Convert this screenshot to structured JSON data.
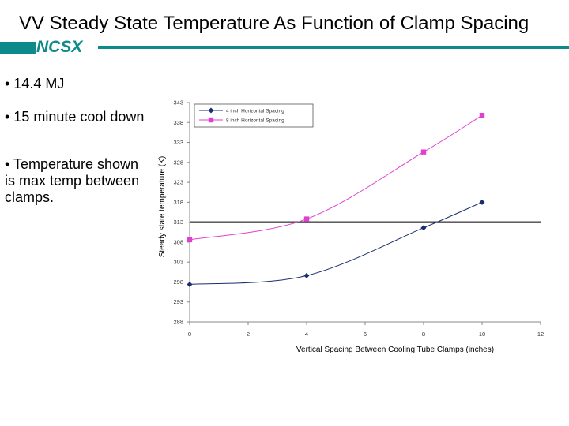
{
  "slide": {
    "title": "VV Steady State Temperature As Function of Clamp Spacing",
    "logo": "NCSX",
    "brand_color": "#0e8a8a",
    "bullets": [
      "• 14.4 MJ",
      "• 15 minute cool down",
      "• Temperature shown is max temp between clamps."
    ]
  },
  "chart_data": {
    "type": "scatter",
    "xlabel": "Vertical Spacing Between Cooling Tube Clamps (inches)",
    "ylabel": "Steady state temperature (K)",
    "xlim": [
      0,
      12
    ],
    "ylim": [
      288,
      343
    ],
    "x_ticks": [
      0,
      2,
      4,
      6,
      8,
      10,
      12
    ],
    "y_ticks": [
      288,
      293,
      298,
      303,
      308,
      313,
      318,
      323,
      328,
      333,
      338,
      343
    ],
    "grid": false,
    "legend_position": "top-right",
    "smoothed_lines": true,
    "series": [
      {
        "name": "4 inch Horizontal Spacing",
        "color": "#1a2e6e",
        "marker": "diamond",
        "x": [
          0,
          4,
          8,
          10
        ],
        "y": [
          297.4,
          299.6,
          311.6,
          318
        ]
      },
      {
        "name": "8 inch Horizontal Spacing",
        "color": "#e040d0",
        "marker": "square",
        "x": [
          0,
          4,
          8,
          10
        ],
        "y": [
          308.6,
          313.8,
          330.6,
          339.8
        ]
      }
    ],
    "reference_line": {
      "y": 313,
      "color": "#000000"
    }
  }
}
